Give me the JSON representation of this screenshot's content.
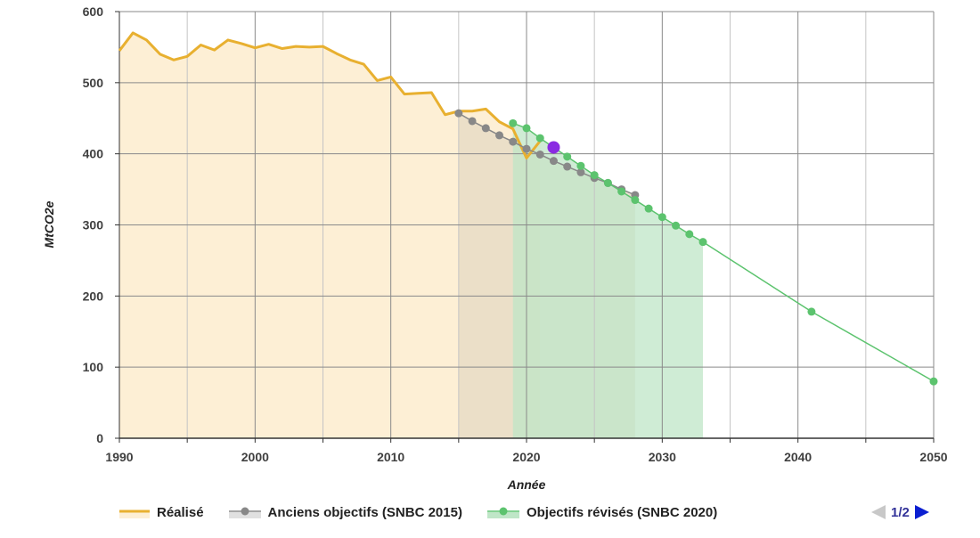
{
  "chart_data": {
    "type": "line",
    "title": "",
    "xlabel": "Année",
    "ylabel": "MtCO2e",
    "xlim": [
      1990,
      2050
    ],
    "ylim": [
      0,
      600
    ],
    "x_ticks": [
      1990,
      2000,
      2010,
      2020,
      2030,
      2040,
      2050
    ],
    "y_ticks": [
      0,
      100,
      200,
      300,
      400,
      500,
      600
    ],
    "grid": true,
    "legend_position": "bottom",
    "series": [
      {
        "name": "Réalisé",
        "color": "#e8b030",
        "fill": "#fdefd5",
        "marker": false,
        "x": [
          1990,
          1991,
          1992,
          1993,
          1994,
          1995,
          1996,
          1997,
          1998,
          1999,
          2000,
          2001,
          2002,
          2003,
          2004,
          2005,
          2006,
          2007,
          2008,
          2009,
          2010,
          2011,
          2012,
          2013,
          2014,
          2015,
          2016,
          2017,
          2018,
          2019,
          2020,
          2021
        ],
        "y": [
          545,
          570,
          560,
          540,
          532,
          537,
          553,
          546,
          560,
          555,
          549,
          554,
          548,
          551,
          550,
          551,
          541,
          532,
          526,
          503,
          508,
          484,
          485,
          486,
          455,
          460,
          460,
          463,
          445,
          435,
          394,
          418
        ]
      },
      {
        "name": "Anciens objectifs (SNBC 2015)",
        "color": "#888888",
        "fill": "#e4d9c3",
        "marker": true,
        "x": [
          2015,
          2016,
          2017,
          2018,
          2019,
          2020,
          2021,
          2022,
          2023,
          2024,
          2025,
          2026,
          2027,
          2028
        ],
        "y": [
          457,
          446,
          436,
          426,
          417,
          407,
          399,
          390,
          382,
          374,
          366,
          359,
          350,
          342
        ]
      },
      {
        "name": "Objectifs révisés (SNBC 2020)",
        "color": "#5cc36e",
        "fill": "#bfe6c7",
        "marker": true,
        "x": [
          2019,
          2020,
          2021,
          2022,
          2023,
          2024,
          2025,
          2026,
          2027,
          2028,
          2029,
          2030,
          2031,
          2032,
          2033,
          2041,
          2050
        ],
        "y": [
          443,
          436,
          422,
          409,
          396,
          383,
          370,
          359,
          347,
          335,
          323,
          311,
          299,
          287,
          276,
          178,
          80
        ]
      }
    ],
    "highlight_point": {
      "x": 2022,
      "y": 409,
      "color": "#8a2be2"
    }
  },
  "legend": {
    "items": [
      {
        "label": "Réalisé"
      },
      {
        "label": "Anciens objectifs (SNBC 2015)"
      },
      {
        "label": "Objectifs révisés (SNBC 2020)"
      }
    ]
  },
  "pager": {
    "text": "1/2"
  }
}
